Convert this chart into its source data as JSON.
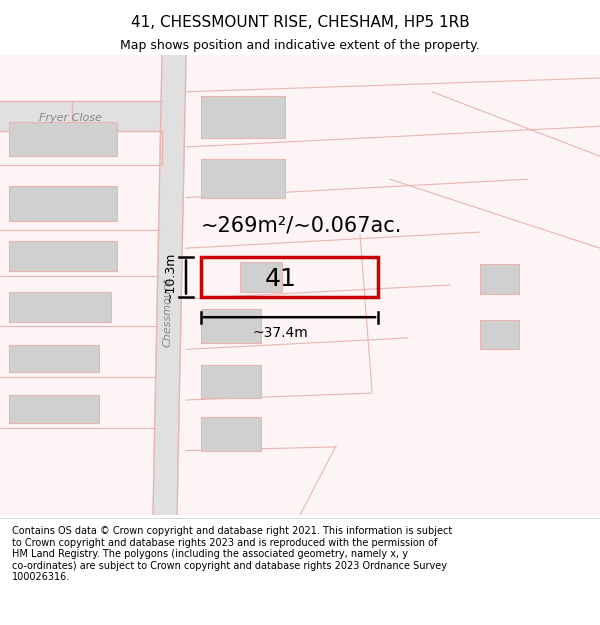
{
  "title": "41, CHESSMOUNT RISE, CHESHAM, HP5 1RB",
  "subtitle": "Map shows position and indicative extent of the property.",
  "footer": "Contains OS data © Crown copyright and database right 2021. This information is subject\nto Crown copyright and database rights 2023 and is reproduced with the permission of\nHM Land Registry. The polygons (including the associated geometry, namely x, y\nco-ordinates) are subject to Crown copyright and database rights 2023 Ordnance Survey\n100026316.",
  "map_bg": "#fdf5f5",
  "road_color": "#e8b4b4",
  "road_fill": "#e0e0e0",
  "building_fill": "#d0d0d0",
  "building_edge": "#e8b4b4",
  "highlight_color": "#cc0000",
  "area_label": "~269m²/~0.067ac.",
  "number_label": "41",
  "width_label": "~37.4m",
  "height_label": "~10.3m",
  "street_label": "Chessmount",
  "street_label2": "Fryer Close",
  "title_fontsize": 11,
  "subtitle_fontsize": 9,
  "footer_fontsize": 7
}
